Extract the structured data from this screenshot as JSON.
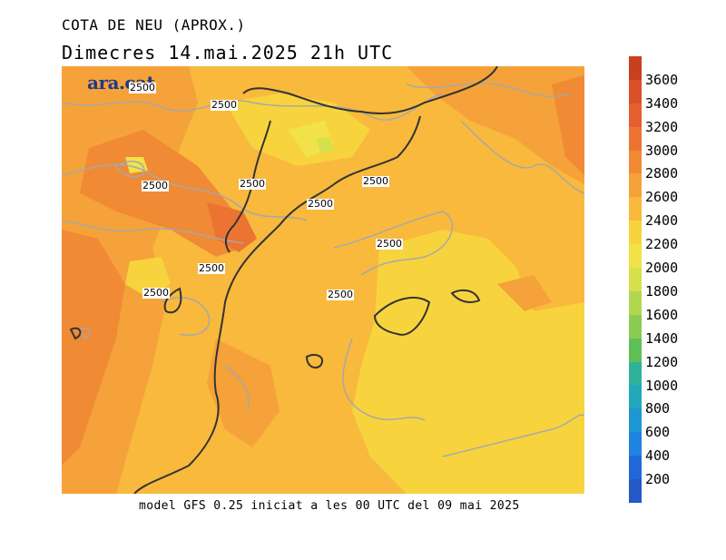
{
  "header": {
    "title": "COTA DE NEU (APROX.)",
    "subtitle": "Dimecres  14.mai.2025 21h UTC"
  },
  "map": {
    "logo": "ara.cat",
    "contour_labels": [
      "2500",
      "2500",
      "2500",
      "2500",
      "2500",
      "2500",
      "2500",
      "2500",
      "2500",
      "2500"
    ]
  },
  "footer": {
    "text": "model GFS 0.25 iniciat a les 00 UTC del 09 mai 2025"
  },
  "colorbar": {
    "labels": [
      "3600",
      "3400",
      "3200",
      "3000",
      "2800",
      "2600",
      "2400",
      "2200",
      "2000",
      "1800",
      "1600",
      "1400",
      "1200",
      "1000",
      "800",
      "600",
      "400",
      "200"
    ],
    "colors": [
      "#c8401f",
      "#d9502a",
      "#e45f30",
      "#ec7433",
      "#f08a35",
      "#f5a23a",
      "#f8b93c",
      "#f7d43e",
      "#f2e24a",
      "#d6e04c",
      "#b3d64f",
      "#8ccc52",
      "#5fbf57",
      "#31b09a",
      "#23a8bb",
      "#1e96d4",
      "#1f83e0",
      "#2168d6",
      "#2459c8"
    ]
  }
}
